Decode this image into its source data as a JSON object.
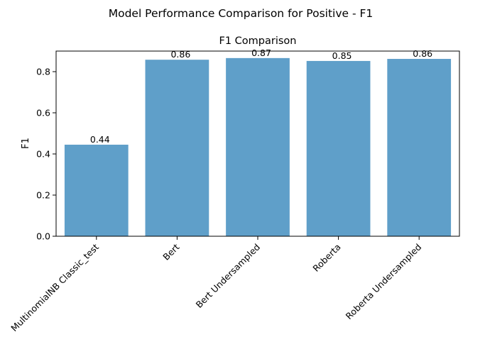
{
  "figure": {
    "suptitle": "Model Performance Comparison for Positive - F1"
  },
  "chart_data": {
    "type": "bar",
    "title": "F1 Comparison",
    "xlabel": "",
    "ylabel": "F1",
    "categories": [
      "MultinomialNB Classic_test",
      "Bert",
      "Bert Undersampled",
      "Roberta",
      "Roberta Undersampled"
    ],
    "values": [
      0.445,
      0.858,
      0.866,
      0.852,
      0.862
    ],
    "value_labels": [
      "0.44",
      "0.86",
      "0.87",
      "0.85",
      "0.86"
    ],
    "ylim": [
      0,
      0.9
    ],
    "yticks": [
      0.0,
      0.2,
      0.4,
      0.6,
      0.8
    ],
    "ytick_labels": [
      "0.0",
      "0.2",
      "0.4",
      "0.6",
      "0.8"
    ],
    "grid": false,
    "bar_color": "#5f9fc9"
  }
}
